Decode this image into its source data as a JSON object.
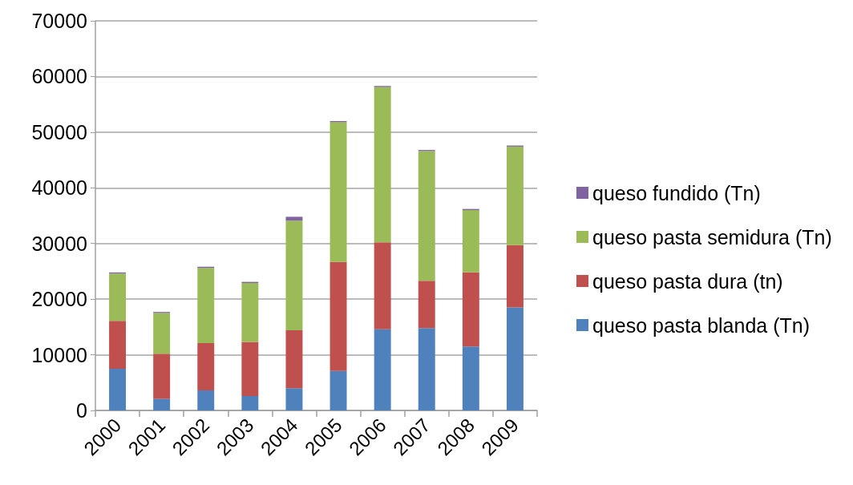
{
  "chart_data": {
    "type": "bar",
    "stacked": true,
    "categories": [
      "2000",
      "2001",
      "2002",
      "2003",
      "2004",
      "2005",
      "2006",
      "2007",
      "2008",
      "2009"
    ],
    "series": [
      {
        "name": "queso pasta blanda (Tn)",
        "color": "#4f81bd",
        "values": [
          7500,
          2100,
          3600,
          2600,
          4000,
          7100,
          14600,
          14800,
          11500,
          18500
        ]
      },
      {
        "name": "queso pasta dura (tn)",
        "color": "#c0504d",
        "values": [
          8600,
          8100,
          8500,
          9700,
          10400,
          19600,
          15600,
          8500,
          13300,
          11200
        ]
      },
      {
        "name": "queso pasta semidura (Tn)",
        "color": "#9bbb59",
        "values": [
          8500,
          7300,
          13500,
          10600,
          19700,
          25100,
          27900,
          23300,
          11200,
          17700
        ]
      },
      {
        "name": "queso fundido (Tn)",
        "color": "#8064a2",
        "values": [
          200,
          200,
          200,
          200,
          700,
          200,
          200,
          200,
          200,
          200
        ]
      }
    ],
    "ylim": [
      0,
      70000
    ],
    "yticks": [
      0,
      10000,
      20000,
      30000,
      40000,
      50000,
      60000,
      70000
    ],
    "grid": "y",
    "legend": "right"
  }
}
